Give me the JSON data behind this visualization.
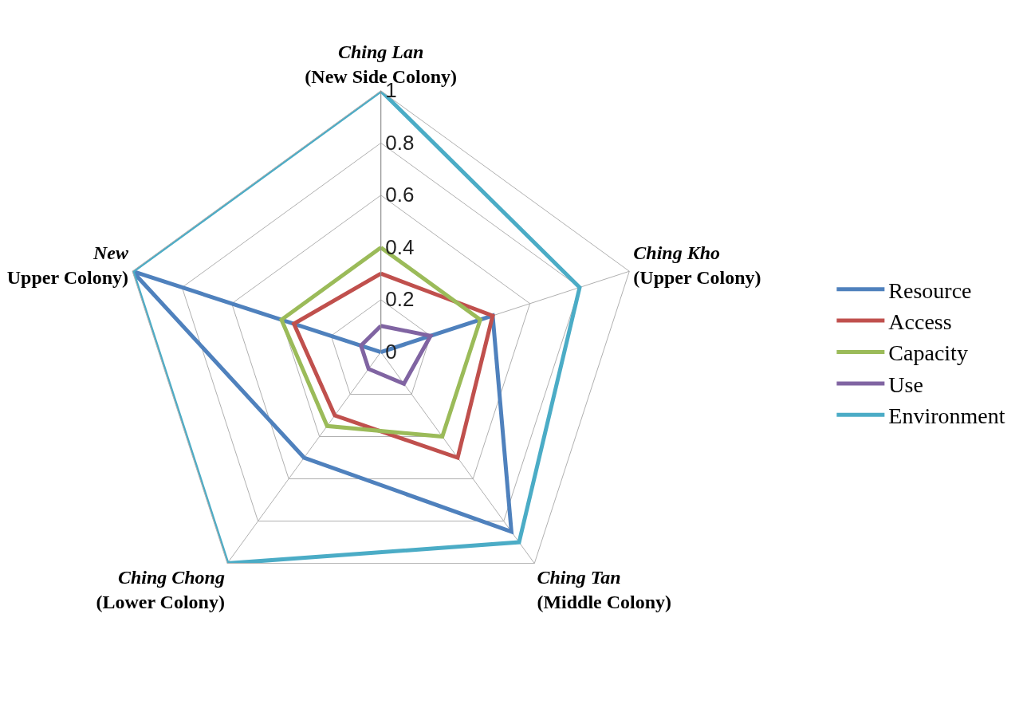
{
  "chart_data": {
    "type": "radar",
    "categories": [
      "Ching Lan\n(New Side Colony)",
      "Ching Kho\n(Upper Colony)",
      "Ching Tan\n(Middle Colony)",
      "Ching Chong\n(Lower Colony)",
      "New\nUpper Colony)"
    ],
    "series": [
      {
        "name": "Resource",
        "color": "#4f81bd",
        "values": [
          0,
          0.45,
          0.85,
          0.5,
          1
        ]
      },
      {
        "name": "Access",
        "color": "#c0504d",
        "values": [
          0.3,
          0.45,
          0.5,
          0.3,
          0.35
        ]
      },
      {
        "name": "Capacity",
        "color": "#9bbb59",
        "values": [
          0.4,
          0.4,
          0.4,
          0.35,
          0.4
        ]
      },
      {
        "name": "Use",
        "color": "#8064a2",
        "values": [
          0.1,
          0.2,
          0.15,
          0.08,
          0.08
        ]
      },
      {
        "name": "Environment",
        "color": "#4bacc6",
        "values": [
          1,
          0.8,
          0.9,
          1,
          1
        ]
      }
    ],
    "ylim": [
      0,
      1
    ],
    "yticks": [
      0,
      0.2,
      0.4,
      0.6,
      0.8,
      1
    ],
    "grid": true,
    "legend": "right",
    "marker": "none",
    "line_style": "solid"
  }
}
